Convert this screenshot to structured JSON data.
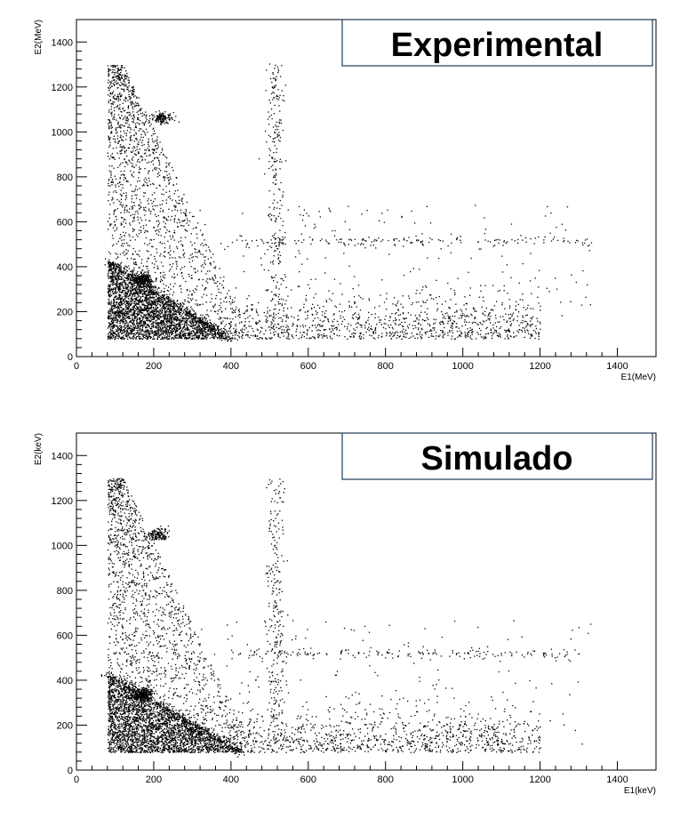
{
  "chart_data": [
    {
      "type": "scatter",
      "title": "Experimental",
      "xlabel": "E1(MeV)",
      "ylabel": "E2(MeV)",
      "xlim": [
        0,
        1500
      ],
      "ylim": [
        0,
        1500
      ],
      "x_ticks": [
        0,
        200,
        400,
        600,
        800,
        1000,
        1200,
        1400
      ],
      "y_ticks": [
        0,
        200,
        400,
        600,
        800,
        1000,
        1200,
        1400
      ],
      "grid": false,
      "marker_color": "#000000",
      "point_count_approx": 6000,
      "features": {
        "triangle_vertices": [
          [
            80,
            80
          ],
          [
            80,
            430
          ],
          [
            400,
            80
          ]
        ],
        "hotspots": [
          [
            170,
            345
          ],
          [
            220,
            1065
          ]
        ],
        "horizontal_band_y": 515,
        "horizontal_band_x": [
          400,
          1350
        ],
        "vertical_band_x": 515,
        "vertical_band_y": [
          120,
          1320
        ]
      }
    },
    {
      "type": "scatter",
      "title": "Simulado",
      "xlabel": "E1(keV)",
      "ylabel": "E2(keV)",
      "xlim": [
        0,
        1500
      ],
      "ylim": [
        0,
        1500
      ],
      "x_ticks": [
        0,
        200,
        400,
        600,
        800,
        1000,
        1200,
        1400
      ],
      "y_ticks": [
        0,
        200,
        400,
        600,
        800,
        1000,
        1200,
        1400
      ],
      "grid": false,
      "marker_color": "#000000",
      "point_count_approx": 6000,
      "features": {
        "triangle_vertices": [
          [
            80,
            80
          ],
          [
            80,
            430
          ],
          [
            430,
            80
          ]
        ],
        "hotspots": [
          [
            170,
            340
          ],
          [
            210,
            1050
          ]
        ],
        "horizontal_band_y": 520,
        "horizontal_band_x": [
          400,
          1300
        ],
        "vertical_band_x": 515,
        "vertical_band_y": [
          120,
          1300
        ]
      }
    }
  ]
}
